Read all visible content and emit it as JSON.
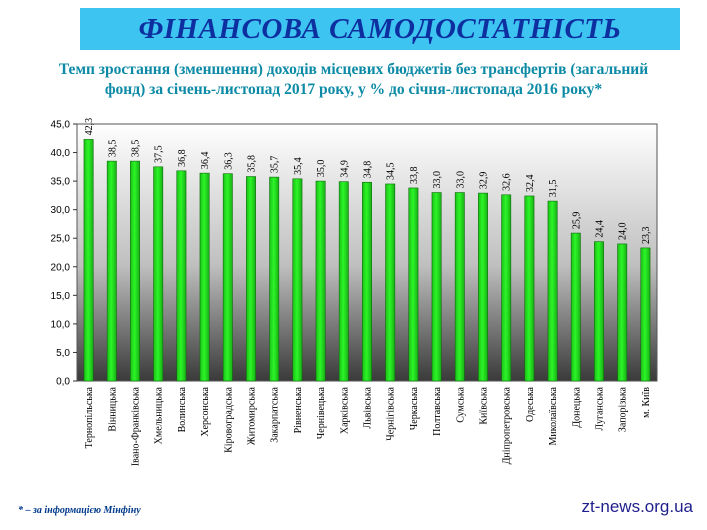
{
  "banner_title": "ФІНАНСОВА САМОДОСТАТНІСТЬ",
  "subtitle_line1": "Темп зростання (зменшення) доходів місцевих бюджетів без трансфертів (загальний",
  "subtitle_line2": "фонд) за січень-листопад 2017 року, у % до січня-листопада 2016 року*",
  "footnote": "* – за інформацією Мінфіну",
  "watermark": "zt-news.org.ua",
  "colors": {
    "bar": "#22e81e",
    "bar_edge": "#0d6b0b",
    "banner": "#3ec4f0",
    "banner_text": "#0d2fa0",
    "subtitle_text": "#0c8aa6"
  },
  "chart_data": {
    "type": "bar",
    "categories": [
      "Тернопільська",
      "Вінницька",
      "Івано-Франківська",
      "Хмельницька",
      "Волинська",
      "Херсонська",
      "Кіровоградська",
      "Житомирська",
      "Закарпатська",
      "Рівненська",
      "Чернівецька",
      "Харківська",
      "Львівська",
      "Чернігівська",
      "Черкаська",
      "Полтавська",
      "Сумська",
      "Київська",
      "Дніпропетровська",
      "Одеська",
      "Миколаївська",
      "Донецька",
      "Луганська",
      "Запорізька",
      "м. Київ"
    ],
    "values": [
      42.3,
      38.5,
      38.5,
      37.5,
      36.8,
      36.4,
      36.3,
      35.8,
      35.7,
      35.4,
      35.0,
      34.9,
      34.8,
      34.5,
      33.8,
      33.0,
      33.0,
      32.9,
      32.6,
      32.4,
      31.5,
      25.9,
      24.4,
      24.0,
      23.3
    ],
    "value_labels": [
      "42,3",
      "38,5",
      "38,5",
      "37,5",
      "36,8",
      "36,4",
      "36,3",
      "35,8",
      "35,7",
      "35,4",
      "35,0",
      "34,9",
      "34,8",
      "34,5",
      "33,8",
      "33,0",
      "33,0",
      "32,9",
      "32,6",
      "32,4",
      "31,5",
      "25,9",
      "24,4",
      "24,0",
      "23,3"
    ],
    "ylim": [
      0,
      45
    ],
    "yticks": [
      "0,0",
      "5,0",
      "10,0",
      "15,0",
      "20,0",
      "25,0",
      "30,0",
      "35,0",
      "40,0",
      "45,0"
    ],
    "grid": false,
    "legend": "none",
    "xlabel": "",
    "ylabel": ""
  }
}
